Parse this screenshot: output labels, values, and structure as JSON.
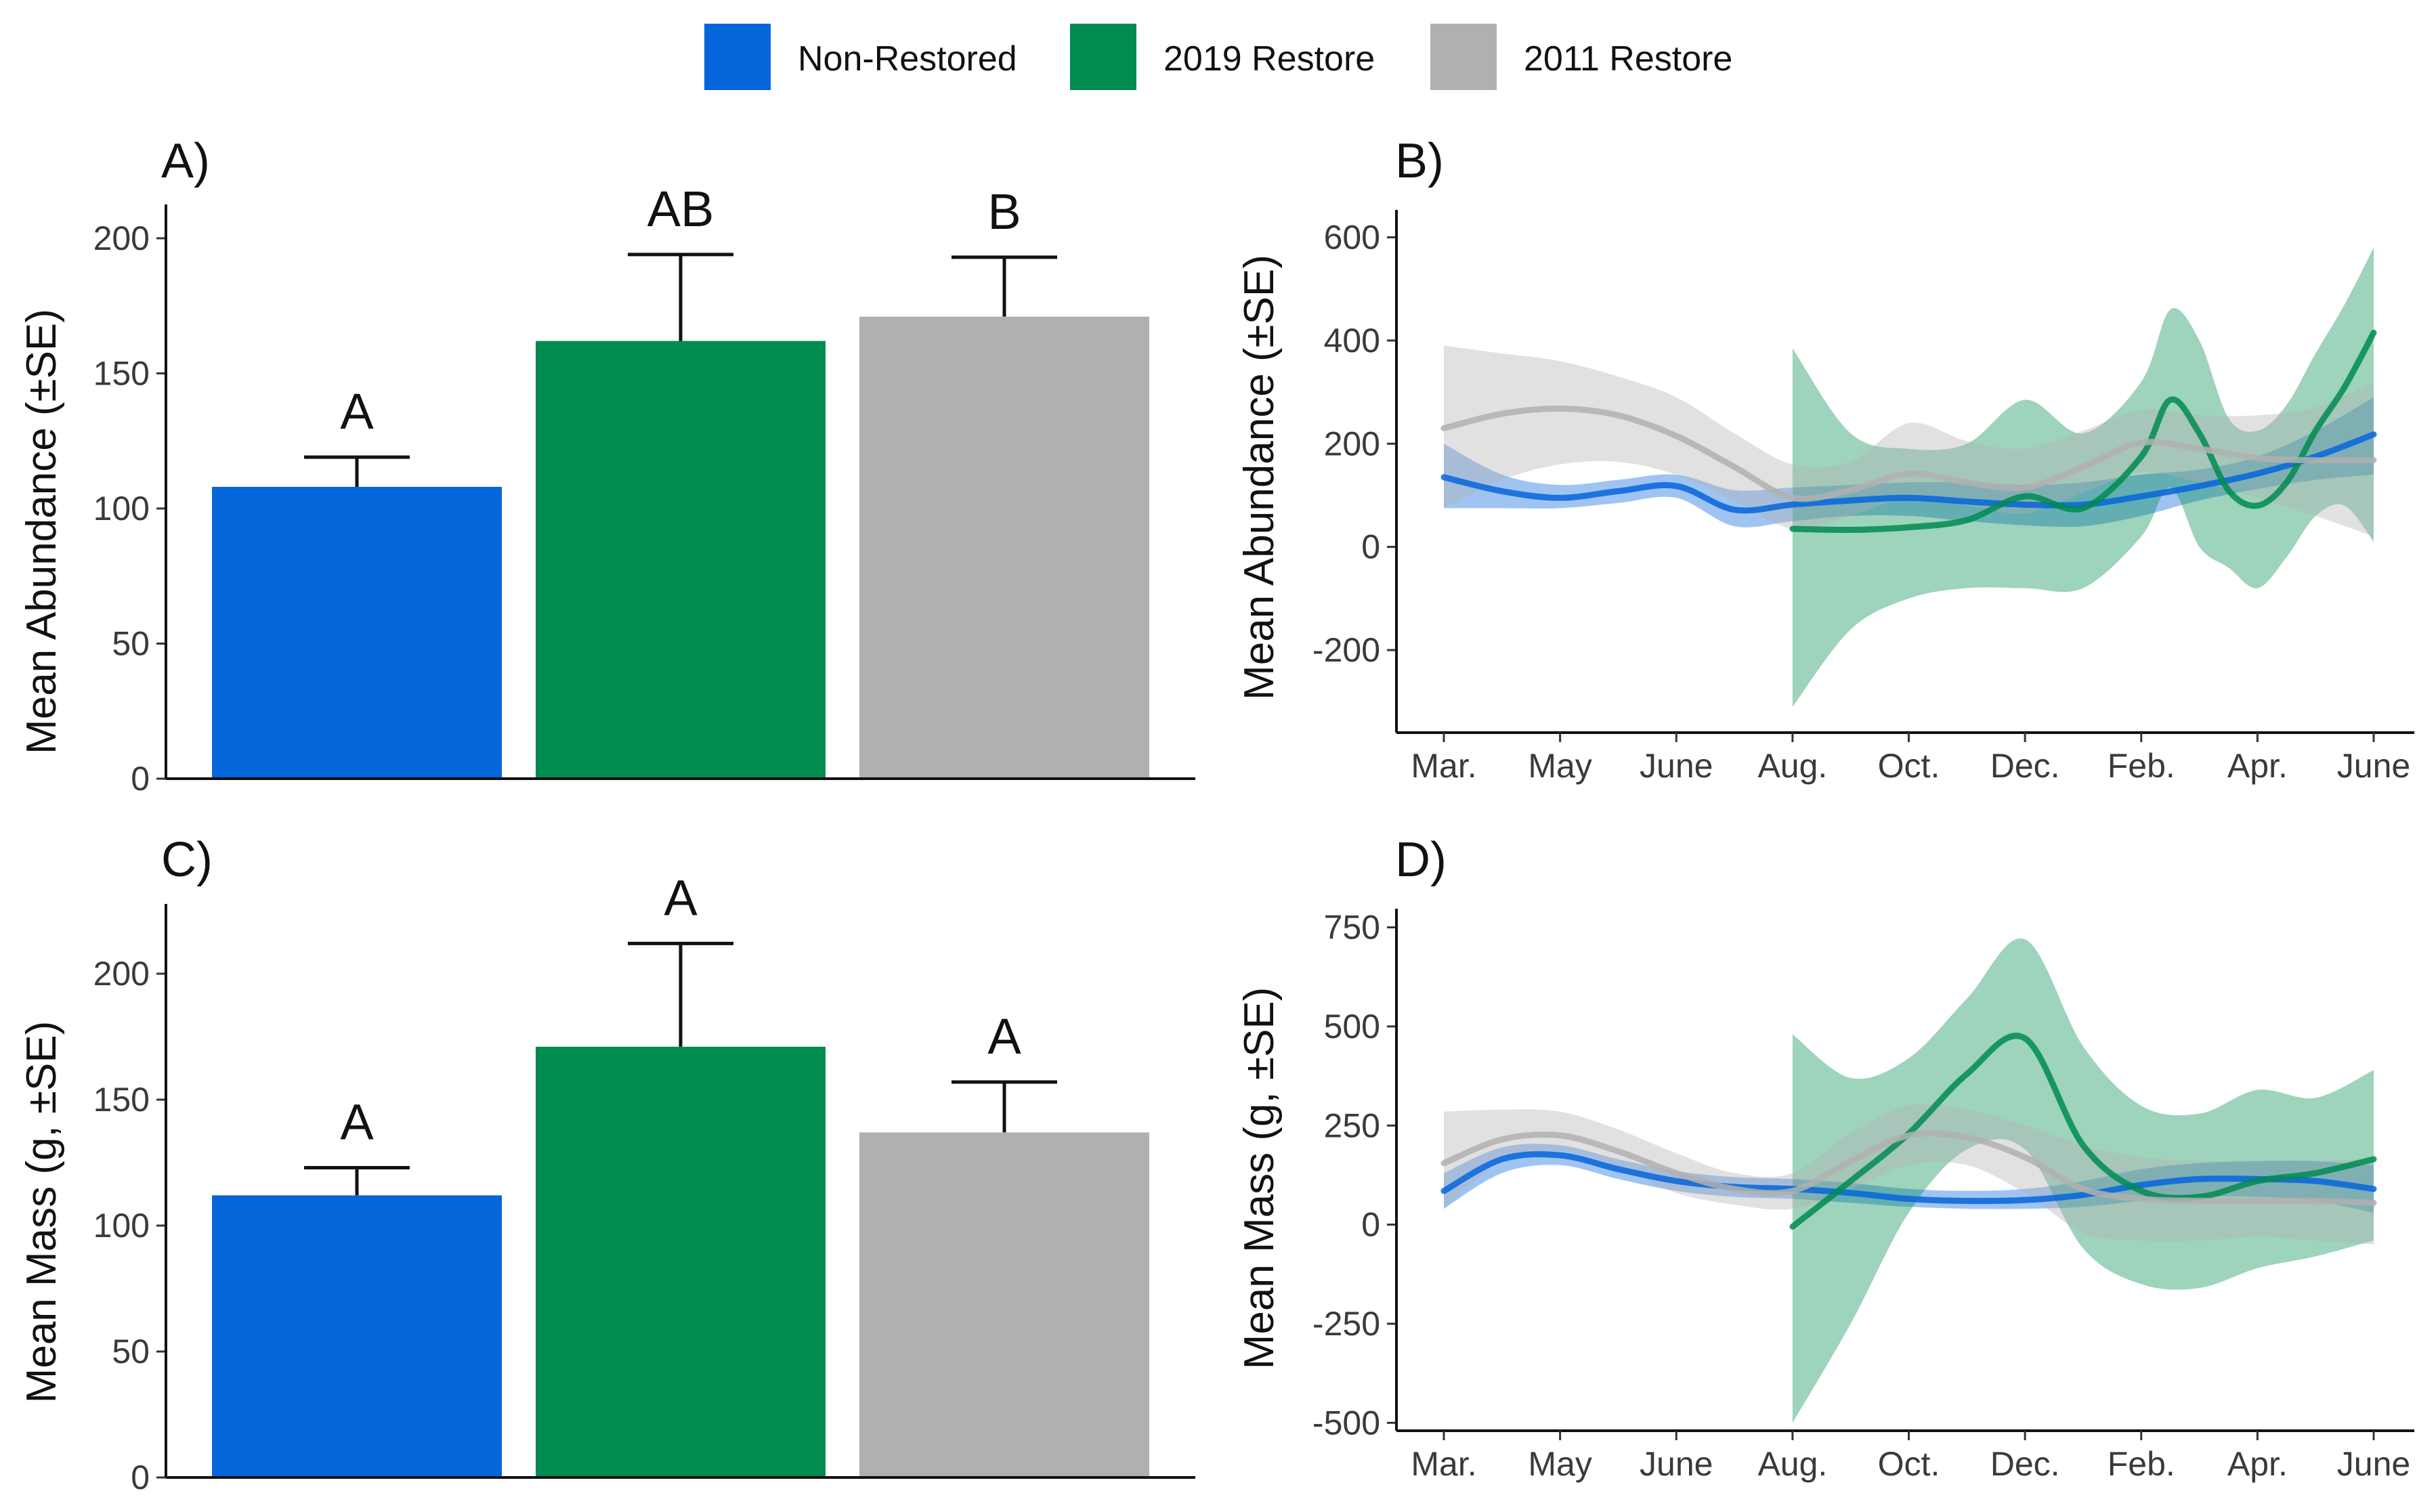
{
  "legend": [
    {
      "label": "Non-Restored",
      "color": "#0565DA"
    },
    {
      "label": "2019 Restore",
      "color": "#008B50"
    },
    {
      "label": "2011 Restore",
      "color": "#B0B0B2"
    }
  ],
  "chart_data": [
    {
      "panel": "A)",
      "type": "bar",
      "ylabel": "Mean Abundance (±SE)",
      "ylim": [
        0,
        210
      ],
      "yticks": [
        0,
        50,
        100,
        150,
        200
      ],
      "categories": [
        "Non-Restored",
        "2019 Restore",
        "2011 Restore"
      ],
      "values": [
        108,
        162,
        171
      ],
      "errors": [
        11,
        32,
        22
      ],
      "significance": [
        "A",
        "AB",
        "B"
      ]
    },
    {
      "panel": "B)",
      "type": "line",
      "ylabel": "Mean Abundance (±SE)",
      "ylim": [
        -360,
        640
      ],
      "yticks": [
        -200,
        0,
        200,
        400,
        600
      ],
      "xticks": [
        "Mar.",
        "May",
        "June",
        "Aug.",
        "Oct.",
        "Dec.",
        "Feb.",
        "Apr.",
        "June"
      ],
      "series": [
        {
          "name": "Non-Restored",
          "x": [
            0,
            0.5,
            1,
            1.5,
            2,
            2.5,
            3,
            3.5,
            4,
            4.5,
            5,
            5.5,
            6,
            6.5,
            7,
            7.5,
            8
          ],
          "values": [
            135,
            108,
            95,
            108,
            118,
            72,
            82,
            90,
            95,
            88,
            82,
            82,
            98,
            118,
            142,
            175,
            218
          ],
          "lower": [
            75,
            75,
            75,
            85,
            95,
            40,
            50,
            60,
            60,
            50,
            42,
            40,
            60,
            90,
            112,
            130,
            140
          ],
          "upper": [
            200,
            140,
            120,
            130,
            140,
            110,
            115,
            120,
            125,
            125,
            120,
            125,
            140,
            150,
            175,
            225,
            290
          ]
        },
        {
          "name": "2019 Restore",
          "x": [
            3,
            3.5,
            4,
            4.5,
            5,
            5.5,
            6,
            6.25,
            6.5,
            6.75,
            7,
            7.25,
            7.5,
            7.75,
            8
          ],
          "values": [
            35,
            33,
            38,
            52,
            98,
            75,
            175,
            285,
            220,
            110,
            80,
            125,
            225,
            310,
            415
          ],
          "lower": [
            -310,
            -160,
            -100,
            -80,
            -80,
            -80,
            20,
            115,
            0,
            -40,
            -80,
            -20,
            60,
            80,
            10
          ],
          "upper": [
            385,
            220,
            190,
            200,
            285,
            220,
            320,
            460,
            400,
            250,
            225,
            275,
            375,
            470,
            580
          ]
        },
        {
          "name": "2011 Restore",
          "x": [
            0,
            0.5,
            1,
            1.5,
            2,
            2.5,
            3,
            3.5,
            4,
            4.5,
            5,
            5.5,
            6,
            6.5,
            7,
            7.5,
            8
          ],
          "values": [
            230,
            258,
            268,
            255,
            215,
            155,
            95,
            110,
            142,
            125,
            115,
            155,
            202,
            190,
            172,
            168,
            168
          ],
          "lower": [
            75,
            130,
            160,
            165,
            140,
            90,
            35,
            60,
            95,
            80,
            65,
            105,
            145,
            125,
            95,
            60,
            20
          ],
          "upper": [
            390,
            375,
            360,
            330,
            290,
            220,
            160,
            165,
            240,
            205,
            190,
            225,
            265,
            255,
            255,
            270,
            320
          ]
        }
      ]
    },
    {
      "panel": "C)",
      "type": "bar",
      "ylabel": "Mean Mass (g, ±SE)",
      "ylim": [
        0,
        225
      ],
      "yticks": [
        0,
        50,
        100,
        150,
        200
      ],
      "categories": [
        "Non-Restored",
        "2019 Restore",
        "2011 Restore"
      ],
      "values": [
        112,
        171,
        137
      ],
      "errors": [
        11,
        41,
        20
      ],
      "significance": [
        "A",
        "A",
        "A"
      ]
    },
    {
      "panel": "D)",
      "type": "line",
      "ylabel": "Mean Mass (g, ±SE)",
      "ylim": [
        -520,
        780
      ],
      "yticks": [
        -500,
        -250,
        0,
        250,
        500,
        750
      ],
      "xticks": [
        "Mar.",
        "May",
        "June",
        "Aug.",
        "Oct.",
        "Dec.",
        "Feb.",
        "Apr.",
        "June"
      ],
      "series": [
        {
          "name": "Non-Restored",
          "x": [
            0,
            0.5,
            1,
            1.5,
            2,
            2.5,
            3,
            3.5,
            4,
            4.5,
            5,
            5.5,
            6,
            6.5,
            7,
            7.5,
            8
          ],
          "values": [
            85,
            165,
            175,
            140,
            110,
            95,
            90,
            80,
            65,
            60,
            62,
            75,
            100,
            115,
            115,
            110,
            90
          ],
          "lower": [
            40,
            130,
            150,
            115,
            85,
            70,
            65,
            55,
            45,
            40,
            40,
            45,
            60,
            70,
            70,
            60,
            30
          ],
          "upper": [
            130,
            195,
            200,
            165,
            135,
            120,
            115,
            105,
            90,
            85,
            90,
            110,
            140,
            155,
            160,
            160,
            150
          ]
        },
        {
          "name": "2019 Restore",
          "x": [
            3,
            3.5,
            4,
            4.5,
            5,
            5.5,
            6,
            6.5,
            7,
            7.5,
            8
          ],
          "values": [
            -5,
            110,
            230,
            380,
            470,
            200,
            85,
            70,
            110,
            130,
            165
          ],
          "lower": [
            -500,
            -250,
            30,
            190,
            190,
            -60,
            -150,
            -160,
            -110,
            -80,
            -40
          ],
          "upper": [
            480,
            370,
            420,
            570,
            720,
            450,
            300,
            280,
            340,
            320,
            390
          ]
        },
        {
          "name": "2011 Restore",
          "x": [
            0,
            0.5,
            1,
            1.5,
            2,
            2.5,
            3,
            3.5,
            4,
            4.5,
            5,
            5.5,
            6,
            6.5,
            7,
            7.5,
            8
          ],
          "values": [
            155,
            215,
            225,
            185,
            130,
            90,
            85,
            160,
            225,
            220,
            170,
            90,
            65,
            60,
            60,
            60,
            55
          ],
          "lower": [
            40,
            160,
            185,
            145,
            80,
            50,
            40,
            90,
            150,
            150,
            80,
            -20,
            -40,
            -40,
            -30,
            -40,
            -50
          ],
          "upper": [
            285,
            290,
            285,
            240,
            180,
            130,
            130,
            230,
            300,
            290,
            250,
            200,
            170,
            160,
            160,
            160,
            165
          ]
        }
      ]
    }
  ]
}
